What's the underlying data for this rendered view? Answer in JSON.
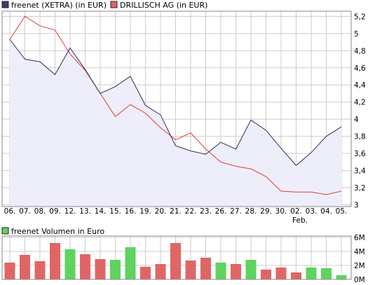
{
  "colors": {
    "freenet": "#2a3060",
    "freenet_fill": "#eeeefb",
    "drillisch": "#e23b3b",
    "vol_up": "#5fd35f",
    "vol_down": "#e06666",
    "grid": "#cccccc",
    "frame": "#888888"
  },
  "chart_data": [
    {
      "type": "line",
      "categories": [
        "06.",
        "07.",
        "08.",
        "09.",
        "12.",
        "13.",
        "14.",
        "15.",
        "16.",
        "19.",
        "20.",
        "21.",
        "22.",
        "23.",
        "26.",
        "27.",
        "28.",
        "29.",
        "30.",
        "02.",
        "03.",
        "04.",
        "05."
      ],
      "month_label": "Feb.",
      "series": [
        {
          "name": "freenet (XETRA) (in EUR)",
          "values": [
            4.93,
            4.7,
            4.67,
            4.52,
            4.83,
            4.58,
            4.3,
            4.38,
            4.5,
            4.16,
            4.05,
            3.69,
            3.63,
            3.59,
            3.73,
            3.65,
            3.99,
            3.87,
            3.66,
            3.46,
            3.61,
            3.8,
            3.91
          ]
        },
        {
          "name": "DRILLISCH AG (in EUR)",
          "values": [
            4.93,
            5.2,
            5.09,
            5.04,
            4.76,
            4.57,
            4.3,
            4.03,
            4.17,
            4.07,
            3.9,
            3.76,
            3.84,
            3.65,
            3.5,
            3.45,
            3.42,
            3.33,
            3.16,
            3.15,
            3.15,
            3.12,
            3.16
          ]
        }
      ],
      "ylim": [
        2.98,
        5.26
      ],
      "y_ticks": [
        "3",
        "3,2",
        "3,4",
        "3,6",
        "3,8",
        "4",
        "4,2",
        "4,4",
        "4,6",
        "4,8",
        "5",
        "5,2"
      ],
      "y_tick_values": [
        3,
        3.2,
        3.4,
        3.6,
        3.8,
        4,
        4.2,
        4.4,
        4.6,
        4.8,
        5,
        5.2
      ],
      "grid": true,
      "legend": "top-left"
    },
    {
      "type": "bar",
      "categories": [
        "06.",
        "07.",
        "08.",
        "09.",
        "12.",
        "13.",
        "14.",
        "15.",
        "16.",
        "19.",
        "20.",
        "21.",
        "22.",
        "23.",
        "26.",
        "27.",
        "28.",
        "29.",
        "30.",
        "02.",
        "03.",
        "04.",
        "05."
      ],
      "series": [
        {
          "name": "freenet Volumen in Euro",
          "values": [
            2.4,
            3.5,
            2.6,
            5.2,
            4.3,
            3.6,
            2.9,
            2.8,
            4.6,
            1.8,
            2.2,
            5.2,
            2.7,
            3.1,
            2.4,
            2.2,
            2.8,
            1.4,
            1.7,
            1.0,
            1.7,
            1.6,
            0.6
          ],
          "direction": [
            "down",
            "down",
            "down",
            "down",
            "up",
            "down",
            "down",
            "up",
            "up",
            "down",
            "down",
            "down",
            "down",
            "down",
            "up",
            "down",
            "up",
            "down",
            "down",
            "down",
            "up",
            "up",
            "up"
          ]
        }
      ],
      "ylim": [
        0,
        6.2
      ],
      "y_ticks": [
        "0M",
        "2M",
        "4M",
        "6M"
      ],
      "y_tick_values": [
        0,
        2,
        4,
        6
      ],
      "grid": true,
      "legend": "top-left"
    }
  ]
}
